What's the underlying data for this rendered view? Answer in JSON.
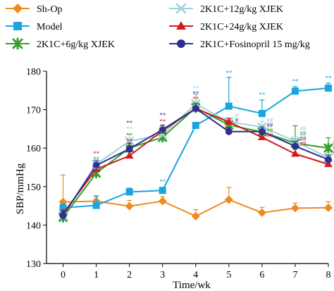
{
  "chart_data": {
    "type": "line",
    "xlabel": "Time/wk",
    "ylabel": "SBP/mmHg",
    "x": [
      0,
      1,
      2,
      3,
      4,
      5,
      6,
      7,
      8
    ],
    "xlim": [
      -0.5,
      8
    ],
    "ylim": [
      130,
      180
    ],
    "yticks": [
      130,
      140,
      150,
      160,
      170,
      180
    ],
    "grid": false,
    "legend_position": "top",
    "series": [
      {
        "name": "Sh-Op",
        "color": "#ef8a1f",
        "marker": "diamond",
        "values": [
          146.0,
          146.2,
          144.9,
          146.2,
          142.3,
          146.6,
          143.2,
          144.4,
          144.5
        ],
        "errors": [
          7.0,
          1.2,
          1.5,
          1.2,
          1.7,
          3.2,
          1.4,
          1.3,
          1.6
        ]
      },
      {
        "name": "Model",
        "color": "#19a5de",
        "marker": "square",
        "values": [
          144.5,
          145.1,
          148.6,
          149.0,
          165.9,
          170.9,
          169.0,
          174.8,
          175.6
        ],
        "errors": [
          1.0,
          2.5,
          1.0,
          0.7,
          0.7,
          7.5,
          3.5,
          1.2,
          1.3
        ]
      },
      {
        "name": "2K1C+6g/kg XJEK",
        "color": "#33a02c",
        "marker": "star",
        "values": [
          142.0,
          153.5,
          160.0,
          162.8,
          170.5,
          166.0,
          164.2,
          161.3,
          160.0
        ],
        "errors": [
          1.0,
          1.5,
          1.5,
          1.0,
          3.5,
          1.2,
          1.3,
          4.5,
          2.7
        ]
      },
      {
        "name": "2K1C+12g/kg XJEK",
        "color": "#9fd1db",
        "marker": "x",
        "values": [
          142.5,
          155.8,
          161.8,
          163.5,
          171.5,
          166.8,
          165.5,
          161.8,
          157.5
        ],
        "errors": [
          1.0,
          1.2,
          1.8,
          1.2,
          2.5,
          1.0,
          1.5,
          1.2,
          1.2
        ]
      },
      {
        "name": "2K1C+24g/kg XJEK",
        "color": "#d7191c",
        "marker": "triangle",
        "values": [
          143.0,
          154.5,
          158.0,
          164.5,
          170.3,
          166.8,
          162.8,
          158.5,
          155.8
        ],
        "errors": [
          1.0,
          1.2,
          1.0,
          1.2,
          1.2,
          1.0,
          1.2,
          1.2,
          1.0
        ]
      },
      {
        "name": "2K1C+Fosinopril 15 mg/kg",
        "color": "#2e2f8e",
        "marker": "circle",
        "values": [
          142.5,
          155.5,
          159.8,
          164.8,
          170.3,
          164.3,
          164.3,
          160.5,
          157.0
        ],
        "errors": [
          1.0,
          1.2,
          1.5,
          1.2,
          1.2,
          1.0,
          1.2,
          1.2,
          1.2
        ]
      }
    ],
    "annotations": [
      {
        "text": "**",
        "x": 1,
        "y": 158.0,
        "color": "#d7191c"
      },
      {
        "text": "**",
        "x": 1,
        "y": 156.6,
        "color": "#33a02c"
      },
      {
        "text": "**",
        "x": 1,
        "y": 155.2,
        "color": "#2e2f8e"
      },
      {
        "text": "**",
        "x": 1,
        "y": 153.8,
        "color": "#9fd1db"
      },
      {
        "text": "**",
        "x": 2,
        "y": 166.0,
        "color": "#2e2f8e"
      },
      {
        "text": "**",
        "x": 2,
        "y": 164.4,
        "color": "#9fd1db"
      },
      {
        "text": "**",
        "x": 2,
        "y": 162.8,
        "color": "#33a02c"
      },
      {
        "text": "**",
        "x": 2,
        "y": 161.2,
        "color": "#d7191c"
      },
      {
        "text": "**",
        "x": 3,
        "y": 168.0,
        "color": "#2e2f8e"
      },
      {
        "text": "**",
        "x": 3,
        "y": 166.4,
        "color": "#d7191c"
      },
      {
        "text": "**",
        "x": 3,
        "y": 164.8,
        "color": "#9fd1db"
      },
      {
        "text": "**",
        "x": 3,
        "y": 163.2,
        "color": "#33a02c"
      },
      {
        "text": "**",
        "x": 4,
        "y": 175.0,
        "color": "#9fd1db"
      },
      {
        "text": "**",
        "x": 4,
        "y": 173.6,
        "color": "#2e2f8e"
      },
      {
        "text": "**",
        "x": 4,
        "y": 172.2,
        "color": "#d7191c"
      },
      {
        "text": "**",
        "x": 4,
        "y": 170.8,
        "color": "#33a02c"
      },
      {
        "text": "**",
        "x": 3,
        "y": 150.7,
        "color": "#19a5de"
      },
      {
        "text": "**",
        "x": 5,
        "y": 179.0,
        "color": "#19a5de"
      },
      {
        "text": "**",
        "x": 6,
        "y": 173.3,
        "color": "#19a5de"
      },
      {
        "text": "**",
        "x": 7,
        "y": 176.8,
        "color": "#19a5de"
      },
      {
        "text": "**",
        "x": 8,
        "y": 177.6,
        "color": "#19a5de"
      },
      {
        "text": "#",
        "x": 5,
        "y": 168.0,
        "color": "#9fd1db"
      },
      {
        "text": "#",
        "x": 5,
        "y": 166.7,
        "color": "#2e2f8e"
      },
      {
        "text": "##",
        "x": 6,
        "y": 166.7,
        "color": "#9fd1db"
      },
      {
        "text": "##",
        "x": 6,
        "y": 165.4,
        "color": "#2e2f8e"
      },
      {
        "text": "##",
        "x": 6,
        "y": 164.1,
        "color": "#33a02c"
      },
      {
        "text": "##",
        "x": 6,
        "y": 162.8,
        "color": "#d7191c"
      },
      {
        "text": "##",
        "x": 7,
        "y": 164.5,
        "color": "#9fd1db"
      },
      {
        "text": "##",
        "x": 7,
        "y": 163.2,
        "color": "#33a02c"
      },
      {
        "text": "##",
        "x": 7,
        "y": 161.9,
        "color": "#2e2f8e"
      },
      {
        "text": "##",
        "x": 7,
        "y": 160.6,
        "color": "#d7191c"
      },
      {
        "text": "##",
        "x": 8,
        "y": 162.3,
        "color": "#9fd1db"
      },
      {
        "text": "##",
        "x": 8,
        "y": 161.0,
        "color": "#33a02c"
      },
      {
        "text": "##",
        "x": 8,
        "y": 159.7,
        "color": "#2e2f8e"
      },
      {
        "text": "##",
        "x": 8,
        "y": 158.4,
        "color": "#d7191c"
      }
    ]
  }
}
